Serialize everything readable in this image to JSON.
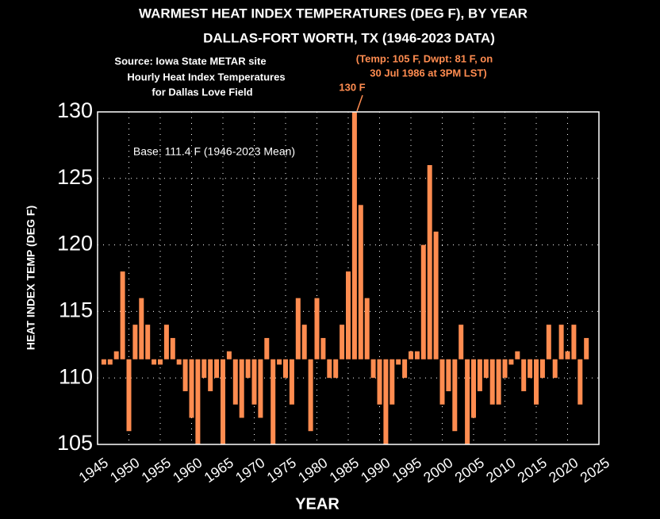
{
  "chart_data": {
    "type": "bar",
    "title": "WARMEST HEAT INDEX TEMPERATURES (DEG F), BY YEAR",
    "subtitle": "DALLAS-FORT WORTH, TX  (1946-2023 DATA)",
    "annotations": [
      "Source: Iowa State METAR site",
      "Hourly Heat Index Temperatures",
      "for Dallas Love Field",
      "(Temp: 105 F, Dwpt: 81 F, on",
      "30 Jul 1986 at 3PM LST)",
      "130 F",
      "Base: 111.4 F (1946-2023 Mean)"
    ],
    "x_label": "YEAR",
    "y_label": "HEAT INDEX TEMP (DEG F)",
    "baseline": 111.4,
    "x": [
      1946,
      1947,
      1948,
      1949,
      1950,
      1951,
      1952,
      1953,
      1954,
      1955,
      1956,
      1957,
      1958,
      1959,
      1960,
      1961,
      1962,
      1963,
      1964,
      1965,
      1966,
      1967,
      1968,
      1969,
      1970,
      1971,
      1972,
      1973,
      1974,
      1975,
      1976,
      1977,
      1978,
      1979,
      1980,
      1981,
      1982,
      1983,
      1984,
      1985,
      1986,
      1987,
      1988,
      1989,
      1990,
      1991,
      1992,
      1993,
      1994,
      1995,
      1996,
      1997,
      1998,
      1999,
      2000,
      2001,
      2002,
      2003,
      2004,
      2005,
      2006,
      2007,
      2008,
      2009,
      2010,
      2011,
      2012,
      2013,
      2014,
      2015,
      2016,
      2017,
      2018,
      2019,
      2020,
      2021,
      2022,
      2023
    ],
    "values": [
      111,
      111,
      112,
      118,
      106,
      114,
      116,
      114,
      111,
      111,
      114,
      113,
      111,
      109,
      107,
      105,
      110,
      109,
      110,
      105,
      112,
      108,
      107,
      110,
      108,
      107,
      113,
      105,
      111,
      110,
      108,
      116,
      114,
      106,
      116,
      113,
      110,
      110,
      114,
      118,
      130,
      123,
      116,
      110,
      108,
      105,
      108,
      111,
      110,
      112,
      112,
      120,
      126,
      121,
      108,
      109,
      106,
      114,
      105,
      107,
      109,
      110,
      108,
      108,
      110,
      111,
      112,
      109,
      110,
      108,
      110,
      114,
      110,
      114,
      112,
      114,
      108,
      113
    ],
    "color": "#ff8c50",
    "xlim": [
      1945,
      2025
    ],
    "xticks": [
      1945,
      1950,
      1955,
      1960,
      1965,
      1970,
      1975,
      1980,
      1985,
      1990,
      1995,
      2000,
      2005,
      2010,
      2015,
      2020,
      2025
    ],
    "ylim": [
      105,
      130
    ],
    "yticks": [
      105,
      110,
      115,
      120,
      125,
      130
    ],
    "grid": true
  }
}
